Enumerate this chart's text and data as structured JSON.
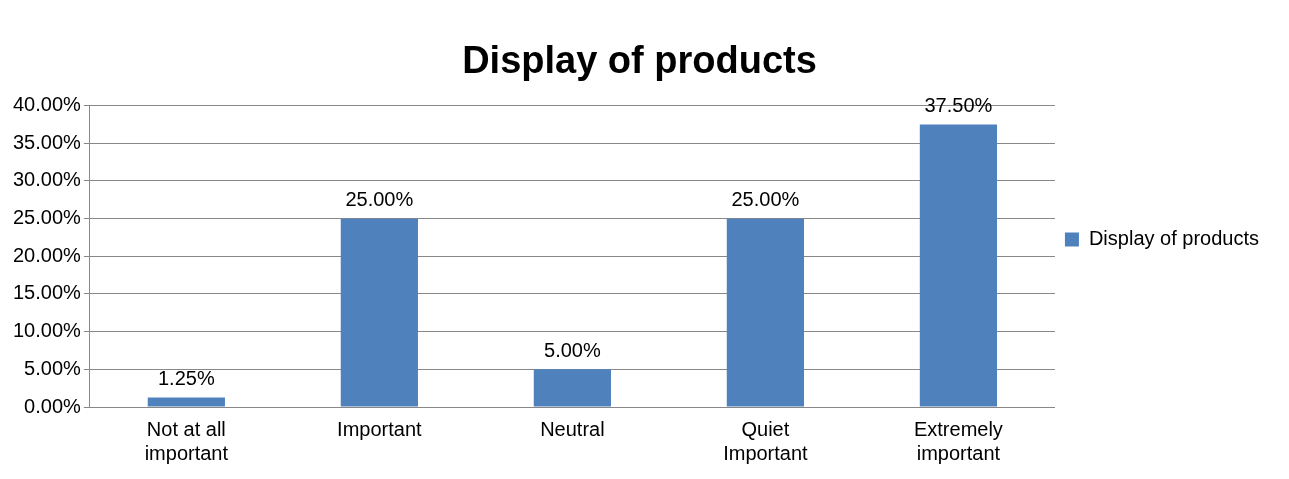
{
  "chart_data": {
    "type": "bar",
    "title": "Display of products",
    "categories": [
      "Not at all important",
      "Important",
      "Neutral",
      "Quiet Important",
      "Extremely important"
    ],
    "series": [
      {
        "name": "Display of products",
        "color": "#4f81bd",
        "values": [
          1.25,
          25,
          5,
          25,
          37.5
        ],
        "value_labels": [
          "1.25%",
          "25.00%",
          "5.00%",
          "25.00%",
          "37.50%"
        ]
      }
    ],
    "ylim": [
      0,
      40
    ],
    "yticks": [
      {
        "value": 0,
        "label": "0.00%"
      },
      {
        "value": 5,
        "label": "5.00%"
      },
      {
        "value": 10,
        "label": "10.00%"
      },
      {
        "value": 15,
        "label": "15.00%"
      },
      {
        "value": 20,
        "label": "20.00%"
      },
      {
        "value": 25,
        "label": "25.00%"
      },
      {
        "value": 30,
        "label": "30.00%"
      },
      {
        "value": 35,
        "label": "35.00%"
      },
      {
        "value": 40,
        "label": "40.00%"
      }
    ],
    "grid": "y",
    "legend": "right"
  }
}
